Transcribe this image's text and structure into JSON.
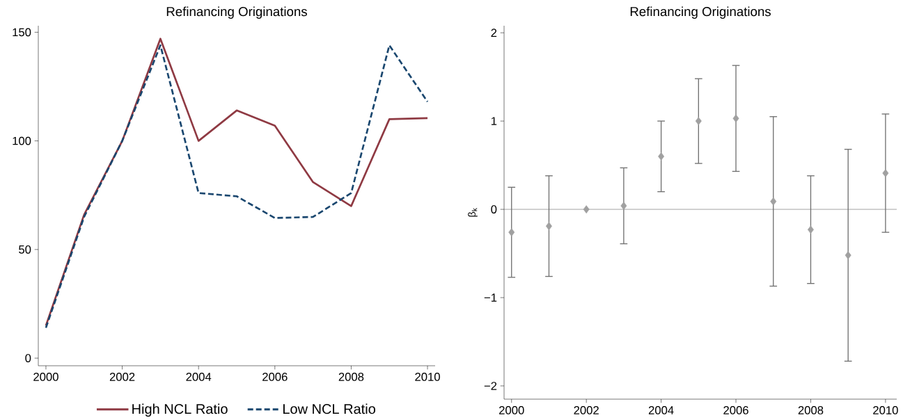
{
  "chart_data": [
    {
      "type": "line",
      "title": "Refinancing Originations",
      "x": [
        2000,
        2001,
        2002,
        2003,
        2004,
        2005,
        2006,
        2007,
        2008,
        2009,
        2010
      ],
      "series": [
        {
          "name": "High NCL Ratio",
          "color": "#8f3a43",
          "line_style": "solid",
          "values": [
            15,
            66,
            100,
            147,
            100,
            114,
            107,
            81,
            70,
            110,
            110.5
          ]
        },
        {
          "name": "Low NCL Ratio",
          "color": "#1a476f",
          "line_style": "dashed",
          "values": [
            14,
            65,
            100,
            144,
            76,
            74.5,
            64.5,
            65,
            76,
            144,
            118
          ]
        }
      ],
      "xlim": [
        1999.8,
        2010.2
      ],
      "ylim": [
        -3.5,
        153
      ],
      "xticks": [
        2000,
        2002,
        2004,
        2006,
        2008,
        2010
      ],
      "yticks": [
        0,
        50,
        100,
        150
      ],
      "grid": false,
      "legend": "bottom",
      "marker": "none"
    },
    {
      "type": "scatter",
      "title": "Refinancing Originations",
      "ylabel": "β$_{k}$",
      "x": [
        2000,
        2001,
        2002,
        2003,
        2004,
        2005,
        2006,
        2007,
        2008,
        2009,
        2010
      ],
      "series": [
        {
          "color": "#a0a0a0",
          "values": [
            -0.26,
            -0.19,
            0,
            0.04,
            0.6,
            1.0,
            1.03,
            0.09,
            -0.23,
            -0.52,
            0.41
          ],
          "errors": [
            [
              -0.77,
              0.25
            ],
            [
              -0.76,
              0.38
            ],
            null,
            [
              -0.39,
              0.47
            ],
            [
              0.2,
              1.0
            ],
            [
              0.52,
              1.48
            ],
            [
              0.43,
              1.63
            ],
            [
              -0.87,
              1.05
            ],
            [
              -0.84,
              0.38
            ],
            [
              -1.72,
              0.68
            ],
            [
              -0.26,
              1.08
            ]
          ]
        }
      ],
      "xlim": [
        1999.8,
        2010.3
      ],
      "ylim": [
        -2.15,
        2.08
      ],
      "xticks": [
        2000,
        2002,
        2004,
        2006,
        2008,
        2010
      ],
      "yticks": [
        {
          "value": -2,
          "label": "−2"
        },
        {
          "value": -1,
          "label": "−1"
        },
        0,
        1,
        2
      ],
      "ref_lines": [
        {
          "axis": "y",
          "value": 0,
          "color": "#505050"
        }
      ],
      "grid": false,
      "legend": false,
      "marker": "diamond"
    }
  ]
}
